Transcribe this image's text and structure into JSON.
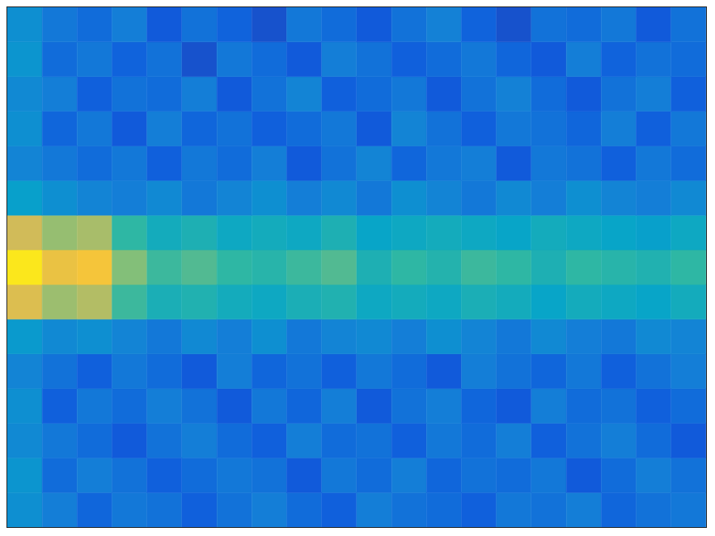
{
  "chart_data": {
    "type": "heatmap",
    "tick_labels": false,
    "zlim": [
      0,
      1
    ],
    "z": [
      [
        0.3,
        0.22,
        0.18,
        0.24,
        0.12,
        0.2,
        0.15,
        0.1,
        0.22,
        0.18,
        0.12,
        0.2,
        0.25,
        0.15,
        0.1,
        0.2,
        0.18,
        0.22,
        0.12,
        0.2
      ],
      [
        0.32,
        0.18,
        0.22,
        0.15,
        0.2,
        0.1,
        0.22,
        0.18,
        0.12,
        0.24,
        0.2,
        0.14,
        0.18,
        0.22,
        0.16,
        0.12,
        0.24,
        0.15,
        0.2,
        0.18
      ],
      [
        0.28,
        0.24,
        0.14,
        0.2,
        0.18,
        0.24,
        0.12,
        0.2,
        0.26,
        0.14,
        0.18,
        0.22,
        0.12,
        0.2,
        0.25,
        0.18,
        0.12,
        0.2,
        0.24,
        0.14
      ],
      [
        0.3,
        0.16,
        0.22,
        0.12,
        0.24,
        0.16,
        0.2,
        0.14,
        0.18,
        0.22,
        0.12,
        0.26,
        0.2,
        0.14,
        0.22,
        0.2,
        0.16,
        0.24,
        0.14,
        0.22
      ],
      [
        0.26,
        0.22,
        0.18,
        0.22,
        0.14,
        0.22,
        0.18,
        0.24,
        0.12,
        0.2,
        0.26,
        0.16,
        0.22,
        0.24,
        0.12,
        0.22,
        0.2,
        0.14,
        0.22,
        0.18
      ],
      [
        0.36,
        0.3,
        0.26,
        0.24,
        0.28,
        0.22,
        0.26,
        0.3,
        0.24,
        0.28,
        0.22,
        0.3,
        0.26,
        0.22,
        0.28,
        0.24,
        0.3,
        0.26,
        0.24,
        0.28
      ],
      [
        0.75,
        0.65,
        0.68,
        0.5,
        0.42,
        0.45,
        0.4,
        0.42,
        0.4,
        0.45,
        0.38,
        0.4,
        0.42,
        0.4,
        0.38,
        0.42,
        0.4,
        0.38,
        0.36,
        0.4
      ],
      [
        0.95,
        0.82,
        0.85,
        0.62,
        0.52,
        0.55,
        0.5,
        0.48,
        0.52,
        0.55,
        0.45,
        0.5,
        0.47,
        0.52,
        0.5,
        0.45,
        0.5,
        0.48,
        0.46,
        0.5
      ],
      [
        0.78,
        0.66,
        0.7,
        0.52,
        0.44,
        0.46,
        0.42,
        0.4,
        0.44,
        0.46,
        0.4,
        0.42,
        0.4,
        0.44,
        0.42,
        0.38,
        0.42,
        0.4,
        0.38,
        0.42
      ],
      [
        0.34,
        0.28,
        0.3,
        0.26,
        0.22,
        0.28,
        0.24,
        0.3,
        0.22,
        0.26,
        0.28,
        0.24,
        0.3,
        0.26,
        0.22,
        0.28,
        0.24,
        0.22,
        0.28,
        0.26
      ],
      [
        0.26,
        0.2,
        0.14,
        0.22,
        0.18,
        0.12,
        0.24,
        0.16,
        0.2,
        0.14,
        0.22,
        0.18,
        0.12,
        0.24,
        0.2,
        0.16,
        0.22,
        0.14,
        0.2,
        0.24
      ],
      [
        0.3,
        0.14,
        0.22,
        0.18,
        0.24,
        0.2,
        0.12,
        0.22,
        0.16,
        0.24,
        0.12,
        0.2,
        0.24,
        0.16,
        0.12,
        0.24,
        0.18,
        0.2,
        0.14,
        0.18
      ],
      [
        0.28,
        0.22,
        0.18,
        0.12,
        0.2,
        0.24,
        0.18,
        0.14,
        0.24,
        0.18,
        0.2,
        0.14,
        0.22,
        0.18,
        0.24,
        0.14,
        0.2,
        0.24,
        0.18,
        0.12
      ],
      [
        0.32,
        0.18,
        0.24,
        0.2,
        0.14,
        0.18,
        0.22,
        0.2,
        0.12,
        0.22,
        0.18,
        0.24,
        0.16,
        0.2,
        0.18,
        0.22,
        0.12,
        0.18,
        0.24,
        0.2
      ],
      [
        0.3,
        0.24,
        0.16,
        0.22,
        0.2,
        0.14,
        0.2,
        0.24,
        0.18,
        0.14,
        0.24,
        0.2,
        0.18,
        0.14,
        0.22,
        0.2,
        0.24,
        0.16,
        0.2,
        0.22
      ]
    ]
  }
}
